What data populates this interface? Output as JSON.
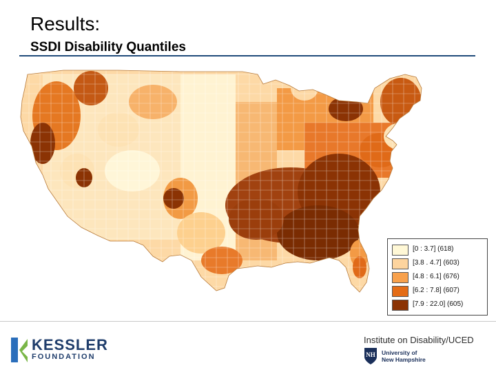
{
  "header": {
    "title": "Results:",
    "subtitle": "SSDI Disability Quantiles"
  },
  "map": {
    "region": "Contiguous United States, county level",
    "colors": {
      "q1": "#fff8d6",
      "q2": "#fdd49e",
      "q3": "#f8a14c",
      "q4": "#e46c16",
      "q5": "#8b3304"
    }
  },
  "legend": {
    "items": [
      {
        "label": "[0 : 3.7] (618)",
        "color": "#fff8d6"
      },
      {
        "label": "[3.8 . 4.7] (603)",
        "color": "#fdd49e"
      },
      {
        "label": "[4.8 : 6.1] (676)",
        "color": "#f8a14c"
      },
      {
        "label": "[6.2 : 7.8] (607)",
        "color": "#e46c16"
      },
      {
        "label": "[7.9 : 22.0] (605)",
        "color": "#8b3304"
      }
    ]
  },
  "footer": {
    "kessler_line1": "KESSLER",
    "kessler_line2": "FOUNDATION",
    "institute": "Institute on Disability/UCED",
    "unh_line1": "University of",
    "unh_line2": "New Hampshire",
    "accent": "#1f3d6b",
    "kessler_green": "#7ab648",
    "kessler_blue": "#2a6ebb"
  }
}
